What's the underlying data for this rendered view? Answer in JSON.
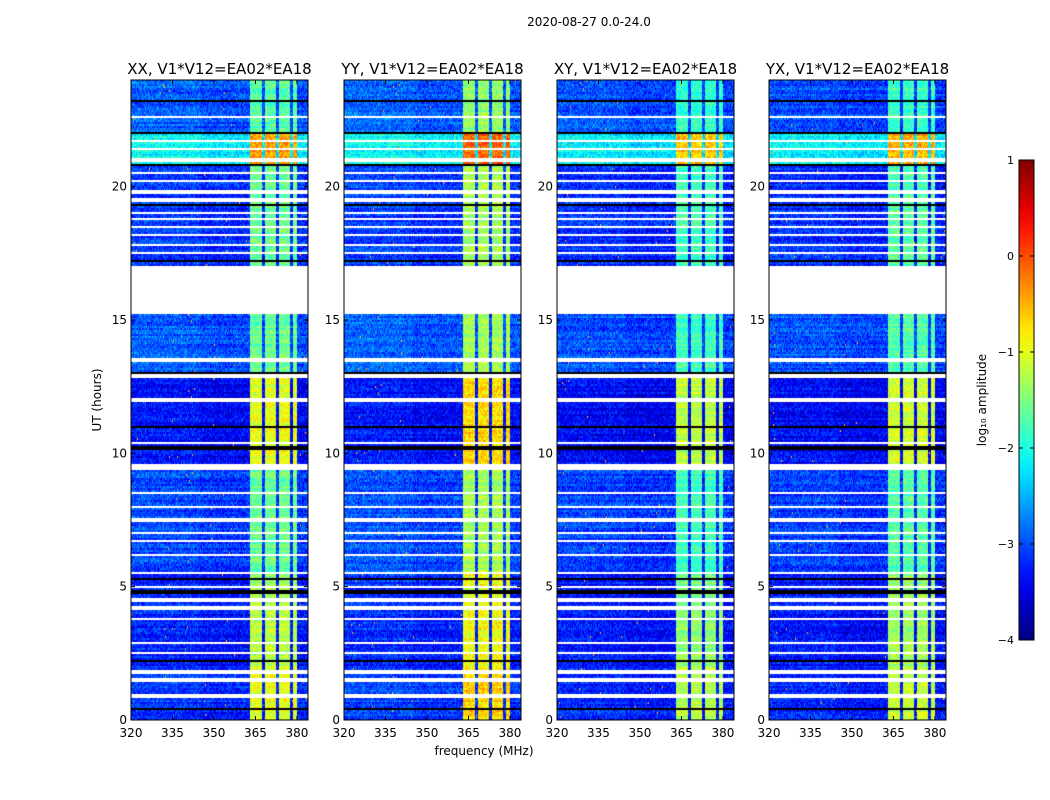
{
  "chart_data": {
    "type": "heatmap",
    "title": "2020-08-27 0.0-24.0",
    "xlabel": "frequency (MHz)",
    "ylabel": "UT (hours)",
    "xlim": [
      320,
      384
    ],
    "ylim": [
      0,
      24
    ],
    "xticks": [
      320,
      335,
      350,
      365,
      380
    ],
    "yticks": [
      0,
      5,
      10,
      15,
      20
    ],
    "panels": [
      {
        "title": "XX, V1*V12=EA02*EA18",
        "band_offset": 0.0,
        "bg_offset": 0.0
      },
      {
        "title": "YY, V1*V12=EA02*EA18",
        "band_offset": 0.3,
        "bg_offset": 0.05
      },
      {
        "title": "XY, V1*V12=EA02*EA18",
        "band_offset": -0.2,
        "bg_offset": -0.05
      },
      {
        "title": "YX, V1*V12=EA02*EA18",
        "band_offset": -0.1,
        "bg_offset": -0.05
      }
    ],
    "colorbar": {
      "label": "log₁₀ amplitude",
      "colormap": "jet",
      "range": [
        -4,
        1
      ],
      "ticks": [
        "1",
        "0",
        "−1",
        "−2",
        "−3",
        "−4"
      ],
      "tick_values": [
        1,
        0,
        -1,
        -2,
        -3,
        -4
      ]
    },
    "bright_band_channels_mhz": [
      [
        363,
        367.5
      ],
      [
        368.5,
        372.5
      ],
      [
        373.5,
        377.5
      ],
      [
        378.5,
        380
      ]
    ],
    "time_segments": [
      {
        "t": [
          0,
          2
        ],
        "bg": -3.2,
        "band": -1.0
      },
      {
        "t": [
          2,
          4
        ],
        "bg": -3.3,
        "band": -1.2
      },
      {
        "t": [
          4,
          5.5
        ],
        "bg": -3.3,
        "band": -1.3
      },
      {
        "t": [
          5.5,
          9.4
        ],
        "bg": -3.1,
        "band": -1.6
      },
      {
        "t": [
          9.6,
          13
        ],
        "bg": -3.4,
        "band": -1.0
      },
      {
        "t": [
          13,
          15.2
        ],
        "bg": -3.0,
        "band": -1.6
      },
      {
        "t": [
          17,
          20.8
        ],
        "bg": -3.2,
        "band": -1.6
      },
      {
        "t": [
          20.8,
          22
        ],
        "bg": -2.2,
        "band": -0.4
      },
      {
        "t": [
          22,
          24
        ],
        "bg": -3.0,
        "band": -1.7
      }
    ],
    "flagged_hours": [
      22.6,
      21.7,
      21.4,
      21.0,
      20.5,
      20.2,
      19.8,
      19.5,
      19.0,
      18.8,
      18.5,
      18.2,
      17.8,
      17.5,
      13.5,
      12.9,
      12.0,
      10.4,
      8.5,
      8.0,
      7.5,
      7.0,
      6.7,
      6.2,
      5.5,
      5.0,
      4.5,
      4.2,
      3.8,
      2.9,
      2.5,
      1.8,
      1.5,
      0.9
    ],
    "flagged_ranges": [
      [
        15.2,
        17.0
      ],
      [
        9.4,
        9.6
      ]
    ],
    "dropout_hours": [
      23.2,
      22.0,
      20.8,
      19.3,
      17.2,
      13.0,
      11.0,
      10.2,
      5.3,
      4.8,
      2.2,
      0.4
    ]
  }
}
